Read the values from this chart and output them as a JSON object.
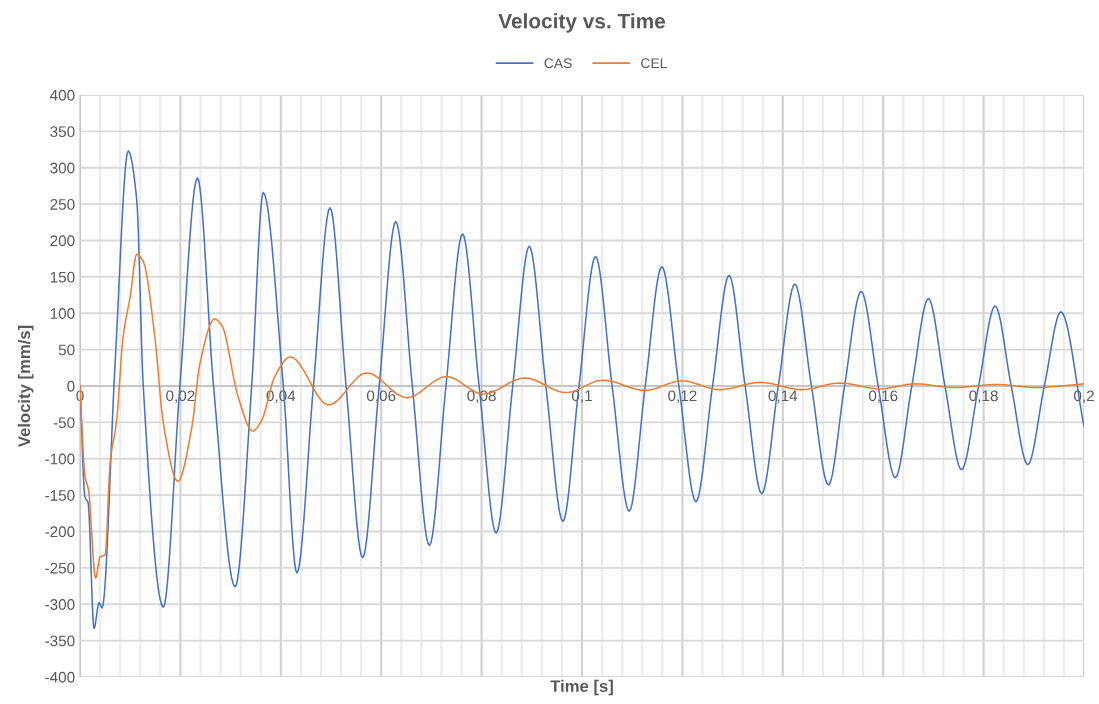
{
  "chart_data": {
    "type": "line",
    "title": "Velocity vs. Time",
    "xlabel": "Time [s]",
    "ylabel": "Velocity [mm/s]",
    "xlim": [
      0,
      0.2
    ],
    "ylim": [
      -400,
      400
    ],
    "xticks": [
      0,
      {
        "value": 0.02,
        "label": "0,02"
      },
      {
        "value": 0.04,
        "label": "0,04"
      },
      {
        "value": 0.06,
        "label": "0,06"
      },
      {
        "value": 0.08,
        "label": "0,08"
      },
      {
        "value": 0.1,
        "label": "0,1"
      },
      {
        "value": 0.12,
        "label": "0,12"
      },
      {
        "value": 0.14,
        "label": "0,14"
      },
      {
        "value": 0.16,
        "label": "0,16"
      },
      {
        "value": 0.18,
        "label": "0,18"
      },
      {
        "value": 0.2,
        "label": "0,2"
      }
    ],
    "yticks": [
      -400,
      -350,
      -300,
      -250,
      -200,
      -150,
      -100,
      -50,
      0,
      50,
      100,
      150,
      200,
      250,
      300,
      350,
      400
    ],
    "grid": true,
    "legend": "top",
    "marker": "none",
    "line_style": "solid",
    "series": [
      {
        "name": "CAS",
        "color": "#4472c4",
        "x": [
          0,
          0.001,
          0.0016,
          0.0028,
          0.0038,
          0.0044,
          0.007,
          0.0096,
          0.0113,
          0.0126,
          0.0166,
          0.0199,
          0.0234,
          0.0266,
          0.0309,
          0.0342,
          0.0365,
          0.0405,
          0.0432,
          0.0465,
          0.0498,
          0.053,
          0.0563,
          0.0596,
          0.0629,
          0.0662,
          0.0696,
          0.0729,
          0.0762,
          0.0795,
          0.0829,
          0.0862,
          0.0895,
          0.0928,
          0.0962,
          0.0994,
          0.1027,
          0.106,
          0.1094,
          0.1126,
          0.1159,
          0.1193,
          0.1227,
          0.126,
          0.1293,
          0.1325,
          0.1358,
          0.1391,
          0.1424,
          0.1457,
          0.1491,
          0.1523,
          0.1556,
          0.159,
          0.1624,
          0.1657,
          0.169,
          0.1723,
          0.1756,
          0.179,
          0.1823,
          0.1855,
          0.1888,
          0.1921,
          0.1954,
          0.2
        ],
        "values": [
          0,
          -153,
          -160,
          -333,
          -298,
          -305,
          32,
          323,
          256,
          0,
          -304,
          0,
          286,
          0,
          -276,
          0,
          266,
          0,
          -257,
          0,
          245,
          0,
          -236,
          0,
          226,
          0,
          -219,
          0,
          209,
          0,
          -202,
          0,
          192,
          0,
          -186,
          0,
          178,
          0,
          -172,
          0,
          164,
          0,
          -159,
          0,
          152,
          0,
          -148,
          0,
          140,
          0,
          -136,
          0,
          130,
          0,
          -126,
          0,
          120,
          0,
          -115,
          0,
          110,
          0,
          -108,
          0,
          102,
          -55
        ]
      },
      {
        "name": "CEL",
        "color": "#ed7d31",
        "x": [
          0,
          0.001,
          0.0017,
          0.0031,
          0.004,
          0.005,
          0.006,
          0.0073,
          0.0086,
          0.01,
          0.0113,
          0.0126,
          0.0149,
          0.0166,
          0.0195,
          0.0222,
          0.0239,
          0.0268,
          0.0282,
          0.0315,
          0.0344,
          0.0362,
          0.0388,
          0.0419,
          0.0495,
          0.0571,
          0.0651,
          0.073,
          0.0803,
          0.0886,
          0.0968,
          0.1042,
          0.1125,
          0.1199,
          0.1275,
          0.1355,
          0.1438,
          0.1514,
          0.1594,
          0.1663,
          0.1743,
          0.1826,
          0.1906,
          0.2
        ],
        "values": [
          0,
          -124,
          -143,
          -264,
          -235,
          -232,
          -106,
          -47,
          68,
          123,
          181,
          171,
          68,
          -51,
          -131,
          -60,
          31,
          92,
          84,
          -15,
          -62,
          -47,
          13,
          40,
          -26,
          18,
          -16,
          13,
          -11,
          11,
          -9,
          8,
          -6,
          7,
          -5,
          5,
          -5,
          4,
          -4,
          3,
          -2,
          2,
          -2,
          3
        ]
      }
    ]
  }
}
